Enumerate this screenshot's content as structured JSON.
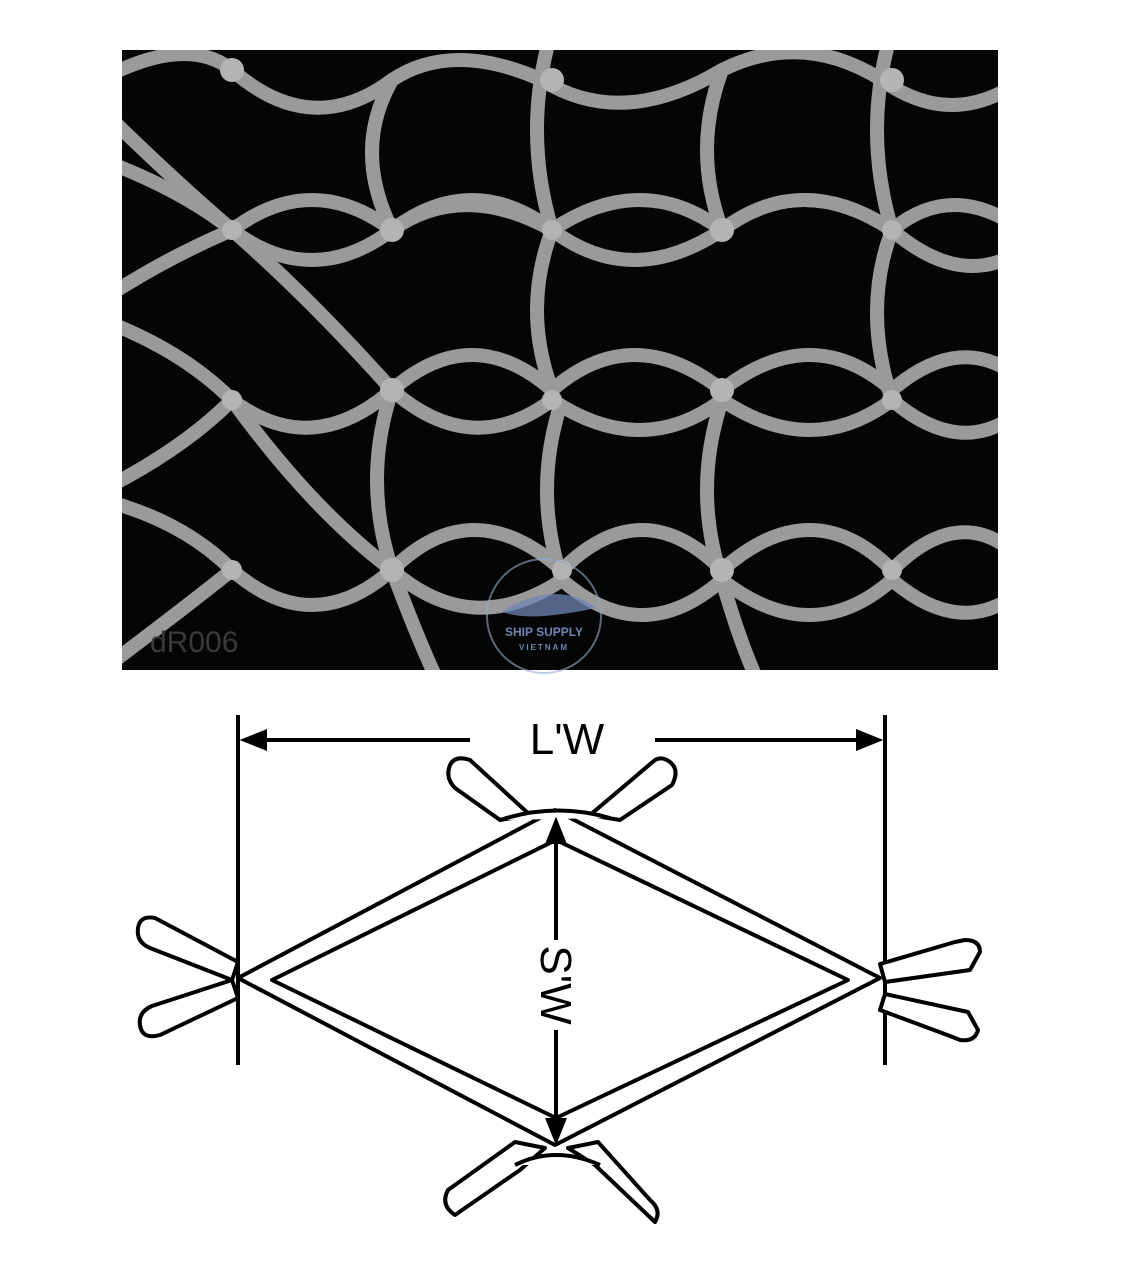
{
  "photo": {
    "corner_text": "dR006"
  },
  "watermark": {
    "line1": "SHIP SUPPLY",
    "line2": "VIETNAM"
  },
  "diagram": {
    "long_way_label": "L'W",
    "short_way_label": "S'W"
  },
  "colors": {
    "background": "#ffffff",
    "photo_dark": "#050505",
    "strand": "#9a9a9a",
    "ink": "#000000",
    "watermark": "#6d84b4"
  }
}
